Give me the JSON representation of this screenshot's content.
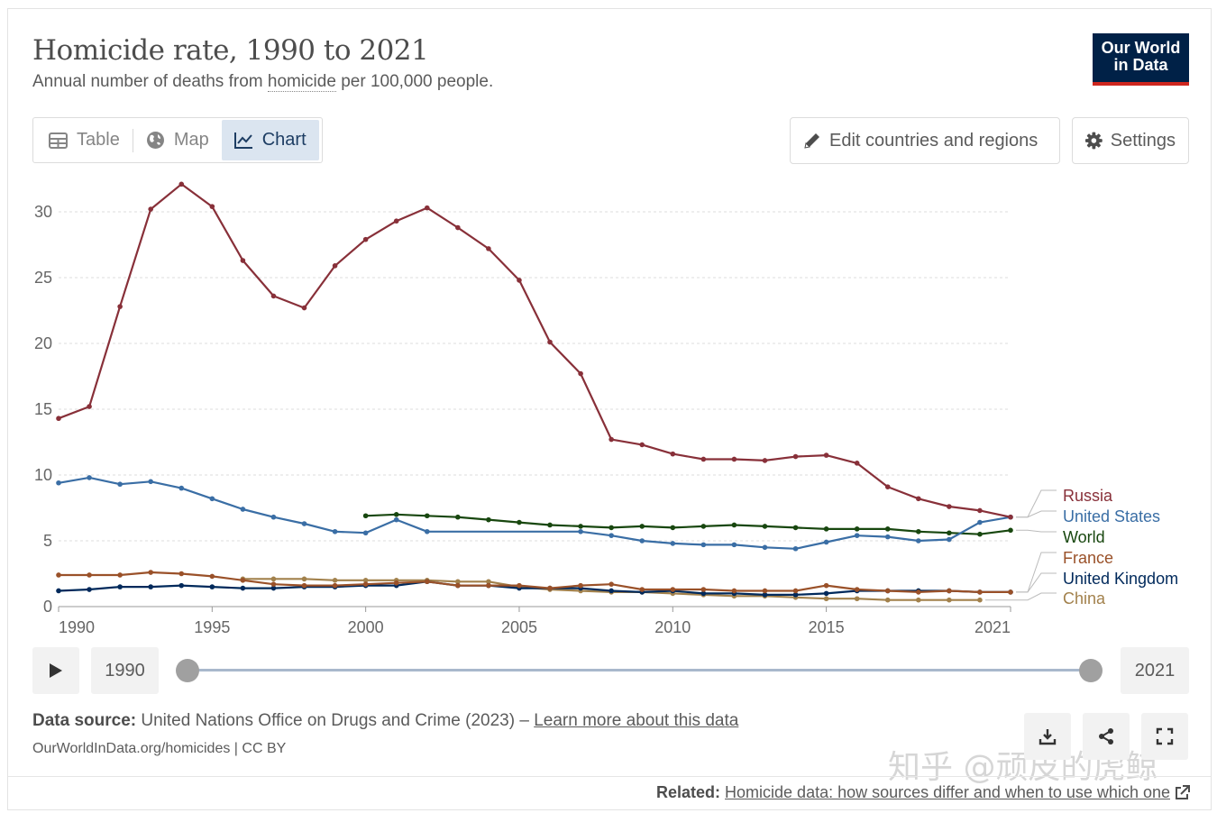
{
  "header": {
    "title": "Homicide rate, 1990 to 2021",
    "subtitle_pre": "Annual number of deaths from ",
    "subtitle_link": "homicide",
    "subtitle_post": " per 100,000 people.",
    "logo_line1": "Our World",
    "logo_line2": "in Data"
  },
  "tabs": [
    {
      "label": "Table",
      "icon": "table-icon"
    },
    {
      "label": "Map",
      "icon": "globe-icon"
    },
    {
      "label": "Chart",
      "icon": "line-chart-icon",
      "active": true
    }
  ],
  "toolbar": {
    "edit_label": "Edit countries and regions",
    "settings_label": "Settings"
  },
  "timeline": {
    "start_year": "1990",
    "end_year": "2021"
  },
  "footer": {
    "source_label": "Data source:",
    "source_text": " United Nations Office on Drugs and Crime (2023) – ",
    "source_link": "Learn more about this data",
    "license": "OurWorldInData.org/homicides | CC BY",
    "related_label": "Related:",
    "related_link": "Homicide data: how sources differ and when to use which one"
  },
  "watermark": "知乎 @顽皮的虎鲸",
  "chart_data": {
    "type": "line",
    "xlim": [
      1990,
      2021
    ],
    "ylim": [
      0,
      32
    ],
    "x_ticks": [
      1990,
      1995,
      2000,
      2005,
      2010,
      2015,
      2021
    ],
    "y_ticks": [
      0,
      5,
      10,
      15,
      20,
      25,
      30
    ],
    "grid": "horizontal dashed",
    "legend": "right, line-end labels",
    "series": [
      {
        "name": "Russia",
        "color": "#883039",
        "x": [
          1990,
          1991,
          1992,
          1993,
          1994,
          1995,
          1996,
          1997,
          1998,
          1999,
          2000,
          2001,
          2002,
          2003,
          2004,
          2005,
          2006,
          2007,
          2008,
          2009,
          2010,
          2011,
          2012,
          2013,
          2014,
          2015,
          2016,
          2017,
          2018,
          2019,
          2020,
          2021
        ],
        "y": [
          14.3,
          15.2,
          22.8,
          30.2,
          32.1,
          30.4,
          26.3,
          23.6,
          22.7,
          25.9,
          27.9,
          29.3,
          30.3,
          28.8,
          27.2,
          24.8,
          20.1,
          17.7,
          12.7,
          12.3,
          11.6,
          11.2,
          11.2,
          11.1,
          11.4,
          11.5,
          10.9,
          9.1,
          8.2,
          7.6,
          7.3,
          6.8
        ]
      },
      {
        "name": "United States",
        "color": "#3a6ea5",
        "x": [
          1990,
          1991,
          1992,
          1993,
          1994,
          1995,
          1996,
          1997,
          1998,
          1999,
          2000,
          2001,
          2002,
          2007,
          2008,
          2009,
          2010,
          2011,
          2012,
          2013,
          2014,
          2015,
          2016,
          2017,
          2018,
          2019,
          2020,
          2021
        ],
        "y": [
          9.4,
          9.8,
          9.3,
          9.5,
          9.0,
          8.2,
          7.4,
          6.8,
          6.3,
          5.7,
          5.6,
          6.6,
          5.7,
          5.7,
          5.4,
          5.0,
          4.8,
          4.7,
          4.7,
          4.5,
          4.4,
          4.9,
          5.4,
          5.3,
          5.0,
          5.1,
          6.4,
          6.8
        ]
      },
      {
        "name": "World",
        "color": "#18470f",
        "x": [
          2000,
          2001,
          2002,
          2003,
          2004,
          2005,
          2006,
          2007,
          2008,
          2009,
          2010,
          2011,
          2012,
          2013,
          2014,
          2015,
          2016,
          2017,
          2018,
          2019,
          2020,
          2021
        ],
        "y": [
          6.9,
          7.0,
          6.9,
          6.8,
          6.6,
          6.4,
          6.2,
          6.1,
          6.0,
          6.1,
          6.0,
          6.1,
          6.2,
          6.1,
          6.0,
          5.9,
          5.9,
          5.9,
          5.7,
          5.6,
          5.5,
          5.8
        ]
      },
      {
        "name": "France",
        "color": "#9a5129",
        "x": [
          1990,
          1991,
          1992,
          1993,
          1994,
          1995,
          1996,
          1997,
          1998,
          1999,
          2000,
          2001,
          2002,
          2003,
          2004,
          2005,
          2006,
          2007,
          2008,
          2009,
          2010,
          2011,
          2012,
          2013,
          2014,
          2015,
          2016,
          2017,
          2018,
          2019,
          2020,
          2021
        ],
        "y": [
          2.4,
          2.4,
          2.4,
          2.6,
          2.5,
          2.3,
          2.0,
          1.7,
          1.6,
          1.6,
          1.7,
          1.8,
          1.9,
          1.6,
          1.6,
          1.6,
          1.4,
          1.6,
          1.7,
          1.3,
          1.3,
          1.3,
          1.2,
          1.2,
          1.2,
          1.6,
          1.3,
          1.2,
          1.1,
          1.2,
          1.1,
          1.1
        ]
      },
      {
        "name": "United Kingdom",
        "color": "#00295b",
        "x": [
          1990,
          1991,
          1992,
          1993,
          1994,
          1995,
          1996,
          1997,
          1998,
          1999,
          2000,
          2001,
          2002,
          2003,
          2004,
          2005,
          2006,
          2007,
          2008,
          2009,
          2010,
          2011,
          2012,
          2013,
          2014,
          2015,
          2016,
          2017,
          2018,
          2019,
          2020,
          2021
        ],
        "y": [
          1.2,
          1.3,
          1.5,
          1.5,
          1.6,
          1.5,
          1.4,
          1.4,
          1.5,
          1.5,
          1.6,
          1.6,
          1.9,
          1.6,
          1.6,
          1.4,
          1.4,
          1.4,
          1.2,
          1.1,
          1.2,
          1.0,
          1.0,
          0.9,
          0.9,
          1.0,
          1.2,
          1.2,
          1.2,
          1.2,
          1.1,
          1.1
        ]
      },
      {
        "name": "China",
        "color": "#a2814c",
        "x": [
          1996,
          1997,
          1998,
          1999,
          2000,
          2001,
          2002,
          2003,
          2004,
          2005,
          2006,
          2007,
          2008,
          2009,
          2010,
          2011,
          2012,
          2013,
          2014,
          2015,
          2016,
          2017,
          2018,
          2019,
          2020
        ],
        "y": [
          2.1,
          2.1,
          2.1,
          2.0,
          2.0,
          2.0,
          2.0,
          1.9,
          1.9,
          1.5,
          1.3,
          1.2,
          1.1,
          1.1,
          1.0,
          0.9,
          0.8,
          0.8,
          0.7,
          0.6,
          0.6,
          0.5,
          0.5,
          0.5,
          0.5
        ]
      }
    ]
  }
}
